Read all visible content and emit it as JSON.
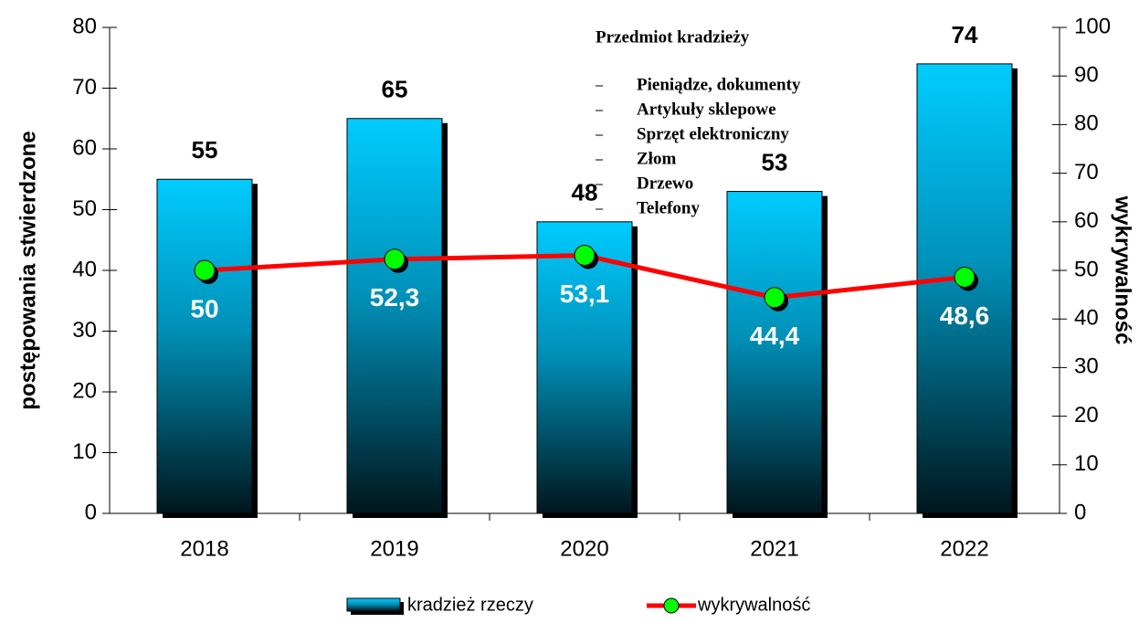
{
  "chart_data": {
    "type": "bar",
    "categories": [
      "2018",
      "2019",
      "2020",
      "2021",
      "2022"
    ],
    "series": [
      {
        "name": "kradzież rzeczy",
        "type": "bar",
        "color": "#00ccff",
        "values": [
          55,
          65,
          48,
          53,
          74
        ]
      },
      {
        "name": "wykrywalność",
        "type": "line",
        "axis": "y2",
        "color": "#ff0000",
        "marker_color": "#00ff00",
        "values": [
          50,
          52.3,
          53.1,
          44.4,
          48.6
        ],
        "value_labels": [
          "50",
          "52,3",
          "53,1",
          "44,4",
          "48,6"
        ]
      }
    ],
    "ylabel": "postępowania stwierdzone",
    "y2label": "wykrywalność",
    "ylim": [
      0,
      80
    ],
    "yticks": [
      0,
      10,
      20,
      30,
      40,
      50,
      60,
      70,
      80
    ],
    "y2lim": [
      0,
      100
    ],
    "y2ticks": [
      0,
      10,
      20,
      30,
      40,
      50,
      60,
      70,
      80,
      90,
      100
    ],
    "annotation": {
      "title": "Przedmiot kradzieży",
      "items": [
        "Pieniądze, dokumenty",
        "Artykuły sklepowe",
        "Sprzęt elektroniczny",
        "Złom",
        "Drzewo",
        "Telefony"
      ]
    },
    "legend": "bottom"
  }
}
